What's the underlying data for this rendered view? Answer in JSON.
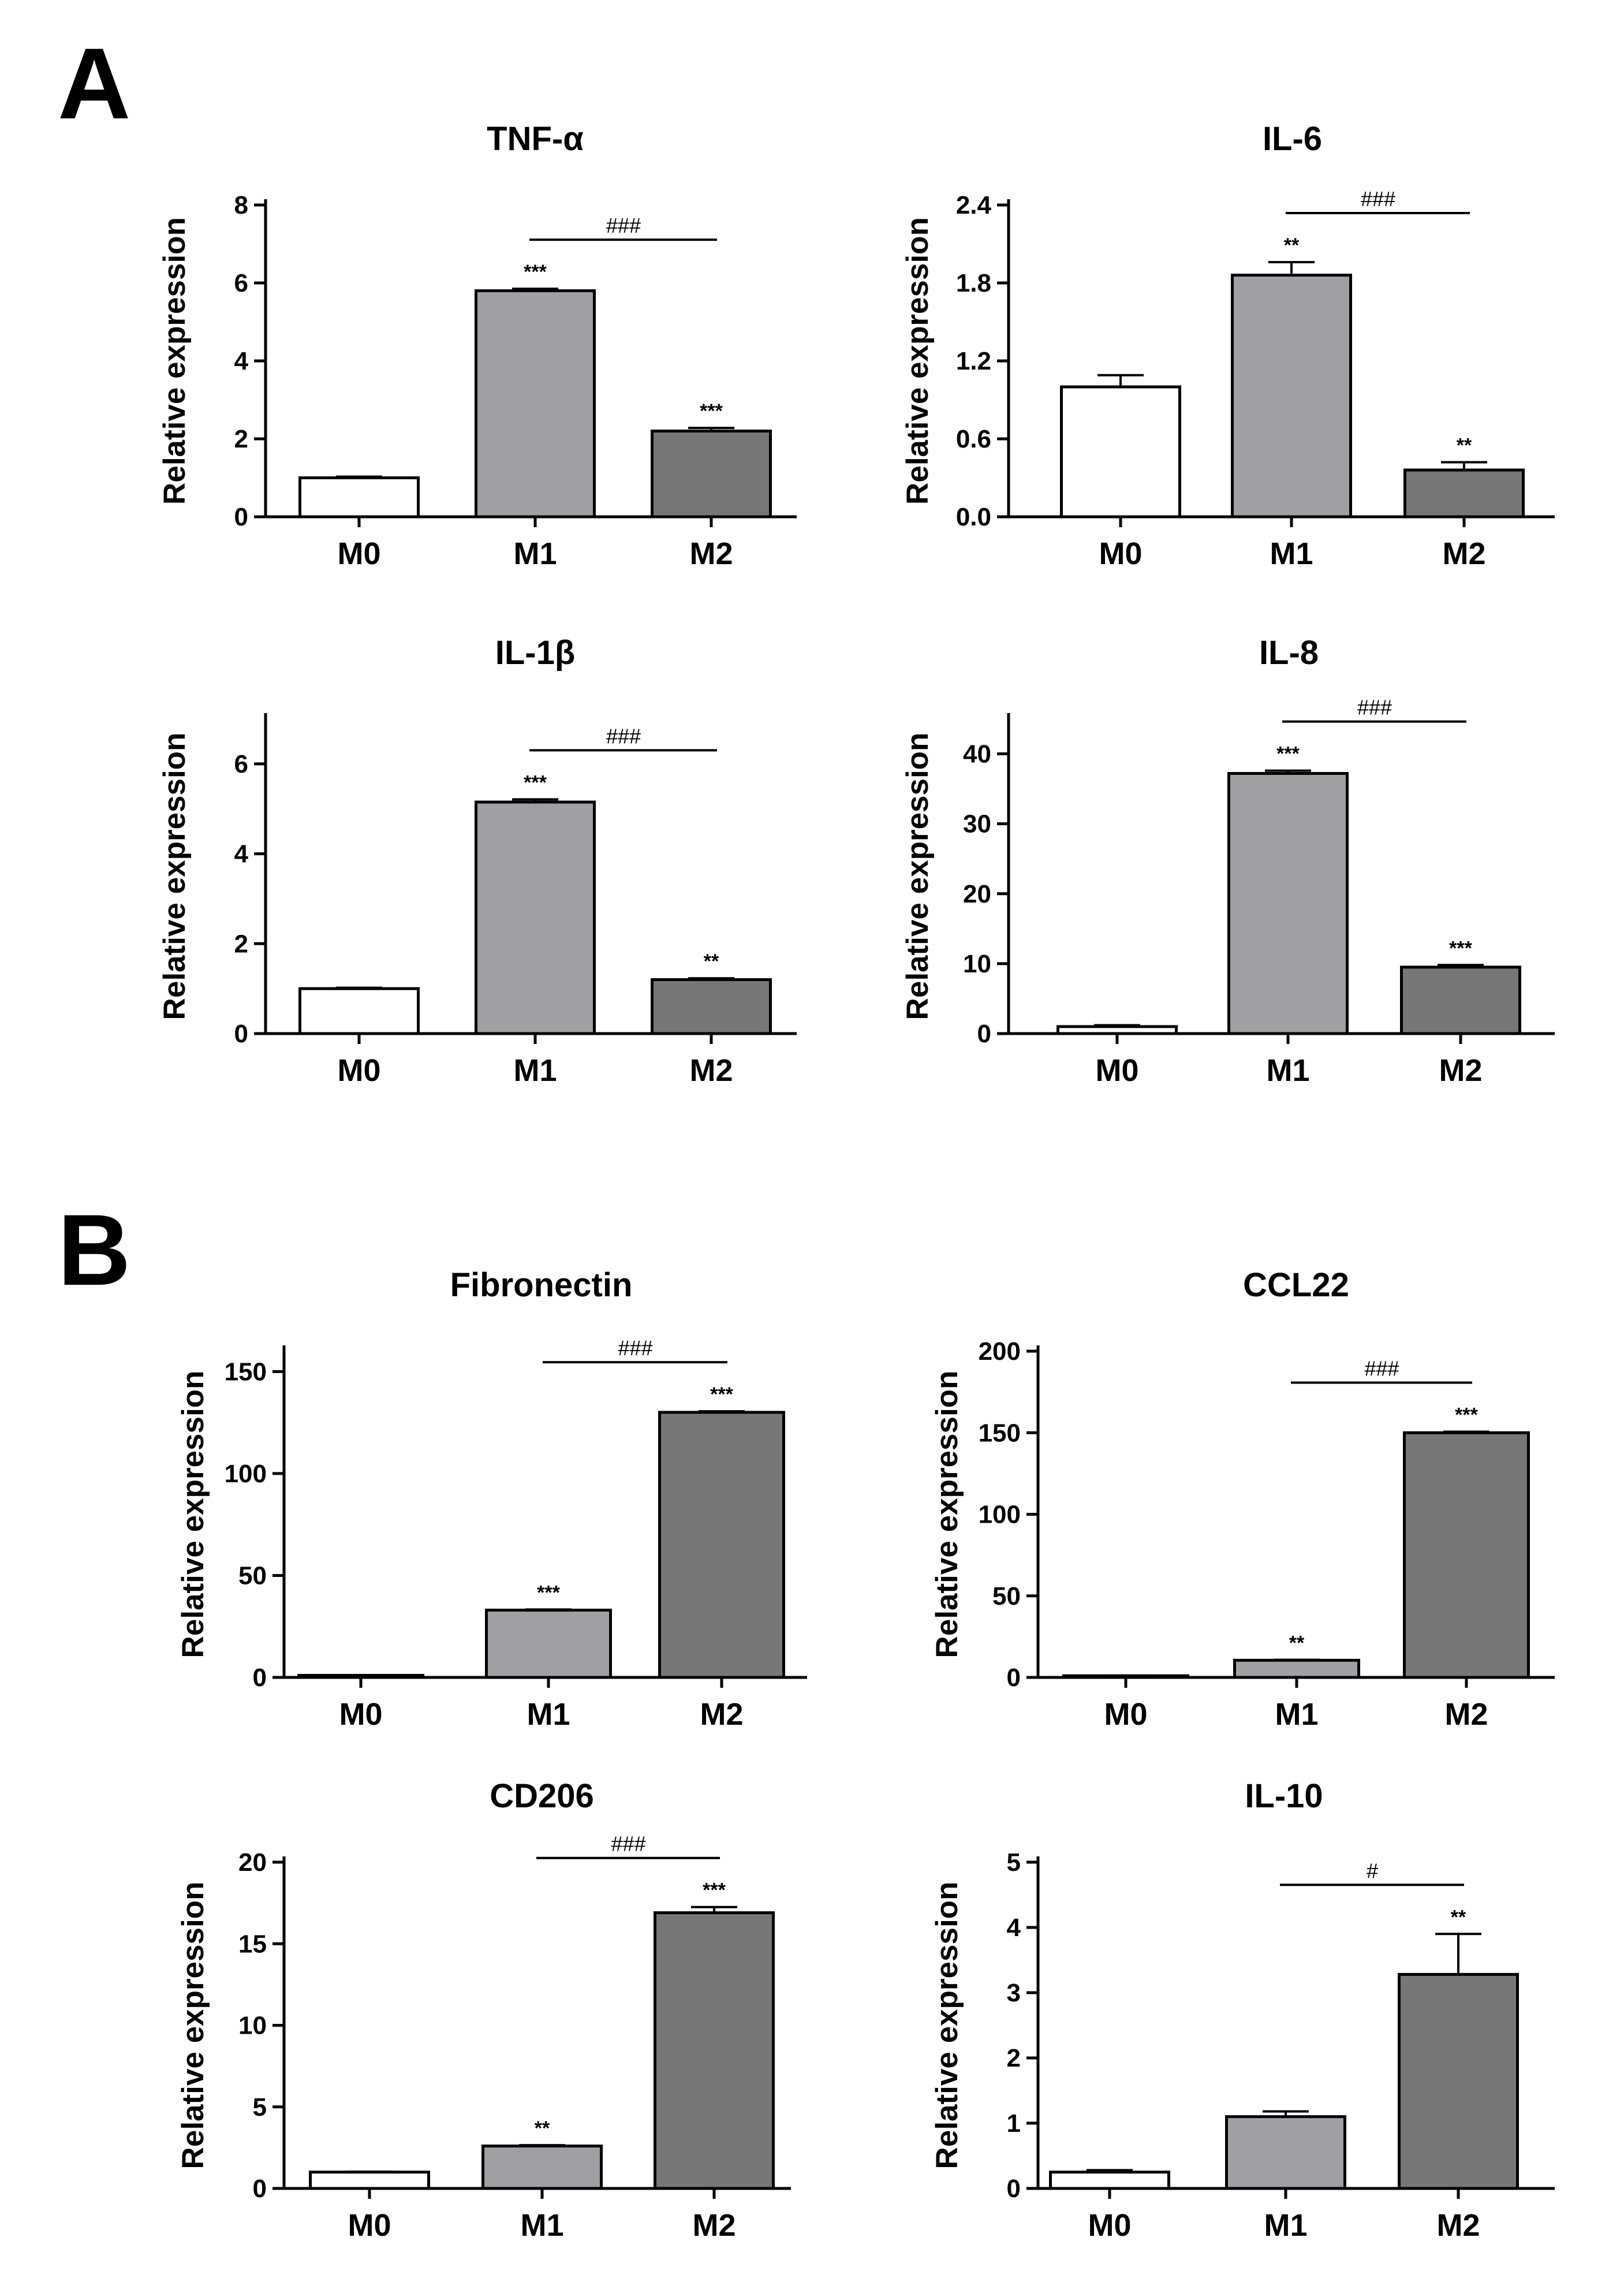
{
  "panels": [
    {
      "label": "A"
    },
    {
      "label": "B"
    }
  ],
  "colors": {
    "M0": "#ffffff",
    "M1": "#a0a0a4",
    "M2": "#77777a",
    "axis": "#000000"
  },
  "chart_data": [
    {
      "type": "bar",
      "panel": "A",
      "title": "TNF-α",
      "xlabel": "",
      "ylabel": "Relative expression",
      "categories": [
        "M0",
        "M1",
        "M2"
      ],
      "values": [
        1.0,
        5.8,
        2.2
      ],
      "errors": [
        0.03,
        0.05,
        0.08
      ],
      "ylim": [
        0,
        8
      ],
      "yticks": [
        "0",
        "2",
        "4",
        "6",
        "8"
      ],
      "annotations": [
        "",
        "***",
        "***"
      ],
      "bracket": {
        "from": "M1",
        "to": "M2",
        "label": "###"
      }
    },
    {
      "type": "bar",
      "panel": "A",
      "title": "IL-6",
      "xlabel": "",
      "ylabel": "Relative expression",
      "categories": [
        "M0",
        "M1",
        "M2"
      ],
      "values": [
        1.0,
        1.86,
        0.36
      ],
      "errors": [
        0.09,
        0.1,
        0.06
      ],
      "ylim": [
        0,
        2.4
      ],
      "yticks": [
        "0.0",
        "0.6",
        "1.2",
        "1.8",
        "2.4"
      ],
      "annotations": [
        "",
        "**",
        "**"
      ],
      "bracket": {
        "from": "M1",
        "to": "M2",
        "label": "###"
      }
    },
    {
      "type": "bar",
      "panel": "A",
      "title": "IL-1β",
      "xlabel": "",
      "ylabel": "Relative expression",
      "categories": [
        "M0",
        "M1",
        "M2"
      ],
      "values": [
        1.0,
        5.15,
        1.2
      ],
      "errors": [
        0.02,
        0.06,
        0.03
      ],
      "ylim": [
        0,
        7
      ],
      "yticks": [
        "0",
        "2",
        "4",
        "6"
      ],
      "annotations": [
        "",
        "***",
        "**"
      ],
      "bracket": {
        "from": "M1",
        "to": "M2",
        "label": "###"
      }
    },
    {
      "type": "bar",
      "panel": "A",
      "title": "IL-8",
      "xlabel": "",
      "ylabel": "Relative expression",
      "categories": [
        "M0",
        "M1",
        "M2"
      ],
      "values": [
        1.0,
        37.2,
        9.5
      ],
      "errors": [
        0.2,
        0.4,
        0.3
      ],
      "ylim": [
        0,
        45
      ],
      "yticks": [
        "0",
        "10",
        "20",
        "30",
        "40"
      ],
      "annotations": [
        "",
        "***",
        "***"
      ],
      "bracket": {
        "from": "M1",
        "to": "M2",
        "label": "###"
      }
    },
    {
      "type": "bar",
      "panel": "B",
      "title": "Fibronectin",
      "xlabel": "",
      "ylabel": "Relative expression",
      "categories": [
        "M0",
        "M1",
        "M2"
      ],
      "values": [
        1.0,
        33.0,
        130.0
      ],
      "errors": [
        0.1,
        0.3,
        0.5
      ],
      "ylim": [
        0,
        160
      ],
      "yticks": [
        "0",
        "50",
        "100",
        "150"
      ],
      "annotations": [
        "",
        "***",
        "***"
      ],
      "bracket": {
        "from": "M1",
        "to": "M2",
        "label": "###"
      }
    },
    {
      "type": "bar",
      "panel": "B",
      "title": "CCL22",
      "xlabel": "",
      "ylabel": "Relative expression",
      "categories": [
        "M0",
        "M1",
        "M2"
      ],
      "values": [
        1.0,
        10.5,
        150.0
      ],
      "errors": [
        0.1,
        0.3,
        0.6
      ],
      "ylim": [
        0,
        200
      ],
      "yticks": [
        "0",
        "50",
        "100",
        "150",
        "200"
      ],
      "annotations": [
        "",
        "**",
        "***"
      ],
      "bracket": {
        "from": "M1",
        "to": "M2",
        "label": "###"
      }
    },
    {
      "type": "bar",
      "panel": "B",
      "title": "CD206",
      "xlabel": "",
      "ylabel": "Relative expression",
      "categories": [
        "M0",
        "M1",
        "M2"
      ],
      "values": [
        1.0,
        2.6,
        16.9
      ],
      "errors": [
        0.02,
        0.05,
        0.35
      ],
      "ylim": [
        0,
        20
      ],
      "yticks": [
        "0",
        "5",
        "10",
        "15",
        "20"
      ],
      "annotations": [
        "",
        "**",
        "***"
      ],
      "bracket": {
        "from": "M1",
        "to": "M2",
        "label": "###"
      }
    },
    {
      "type": "bar",
      "panel": "B",
      "title": "IL-10",
      "xlabel": "",
      "ylabel": "Relative expression",
      "categories": [
        "M0",
        "M1",
        "M2"
      ],
      "values": [
        0.25,
        1.1,
        3.28
      ],
      "errors": [
        0.03,
        0.08,
        0.62
      ],
      "ylim": [
        0,
        5
      ],
      "yticks": [
        "0",
        "1",
        "2",
        "3",
        "4",
        "5"
      ],
      "annotations": [
        "",
        "",
        "**"
      ],
      "bracket": {
        "from": "M1",
        "to": "M2",
        "label": "#"
      }
    }
  ]
}
